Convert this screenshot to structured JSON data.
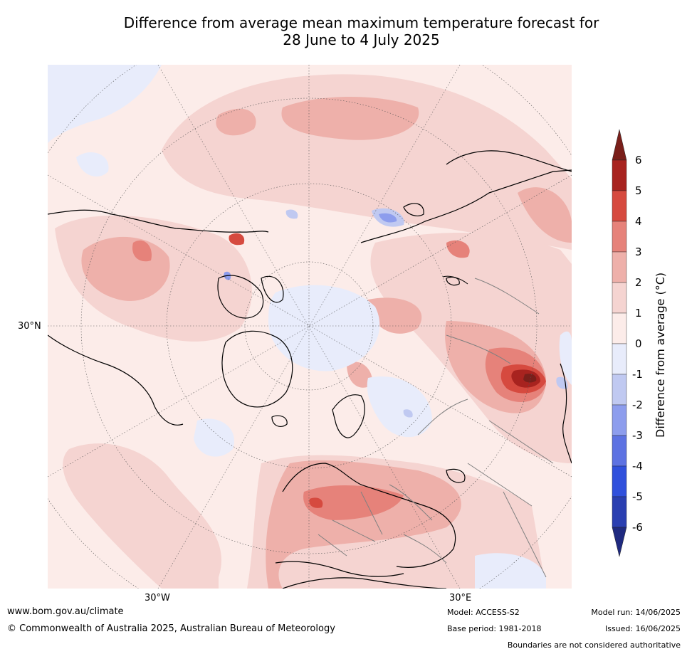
{
  "title_line1": "Difference from average mean maximum temperature forecast for",
  "title_line2": "28 June to 4 July 2025",
  "map": {
    "lat_label": "30°N",
    "lon_labels": [
      "30°W",
      "30°E"
    ]
  },
  "colorbar": {
    "label": "Difference from average (°C)",
    "ticks": [
      "6",
      "5",
      "4",
      "3",
      "2",
      "1",
      "0",
      "-1",
      "-2",
      "-3",
      "-4",
      "-5",
      "-6"
    ],
    "colors": {
      "above6": "#7a1f1a",
      "5to6": "#a8231f",
      "4to5": "#d64a3f",
      "3to4": "#e6827a",
      "2to3": "#eeb0aa",
      "1to2": "#f5d4d1",
      "0to1": "#fcece9",
      "m1to0": "#e8ecfb",
      "m2tom1": "#c0c9f1",
      "m3tom2": "#8d9ded",
      "m4tom3": "#5d72e2",
      "m5tom4": "#3050dc",
      "m6tom5": "#2a3fb1",
      "below6": "#1f2a80"
    }
  },
  "footer": {
    "website": "www.bom.gov.au/climate",
    "copyright": "© Commonwealth of Australia 2025, Australian Bureau of Meteorology",
    "model": "Model: ACCESS-S2",
    "base_period": "Base period: 1981-2018",
    "model_run": "Model run: 14/06/2025",
    "issued": "Issued: 16/06/2025",
    "disclaimer": "Boundaries are not considered authoritative"
  }
}
